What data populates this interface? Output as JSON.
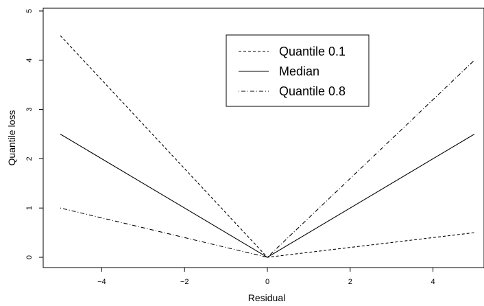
{
  "chart_data": {
    "type": "line",
    "xlabel": "Residual",
    "ylabel": "Quantile loss",
    "xlim": [
      -5,
      5
    ],
    "ylim": [
      0,
      5
    ],
    "x_ticks": [
      -4,
      -2,
      0,
      2,
      4
    ],
    "x_tick_labels": [
      "−4",
      "−2",
      "0",
      "2",
      "4"
    ],
    "y_ticks": [
      0,
      1,
      2,
      3,
      4,
      5
    ],
    "y_tick_labels": [
      "0",
      "1",
      "2",
      "3",
      "4",
      "5"
    ],
    "grid": false,
    "legend_position": "top-center",
    "series": [
      {
        "name": "Quantile 0.1",
        "line_style": "dashed",
        "x": [
          -5,
          0,
          5
        ],
        "y": [
          4.5,
          0,
          0.5
        ]
      },
      {
        "name": "Median",
        "line_style": "solid",
        "x": [
          -5,
          0,
          5
        ],
        "y": [
          2.5,
          0,
          2.5
        ]
      },
      {
        "name": "Quantile 0.8",
        "line_style": "dotdash",
        "x": [
          -5,
          0,
          5
        ],
        "y": [
          1.0,
          0,
          4.0
        ]
      }
    ]
  }
}
